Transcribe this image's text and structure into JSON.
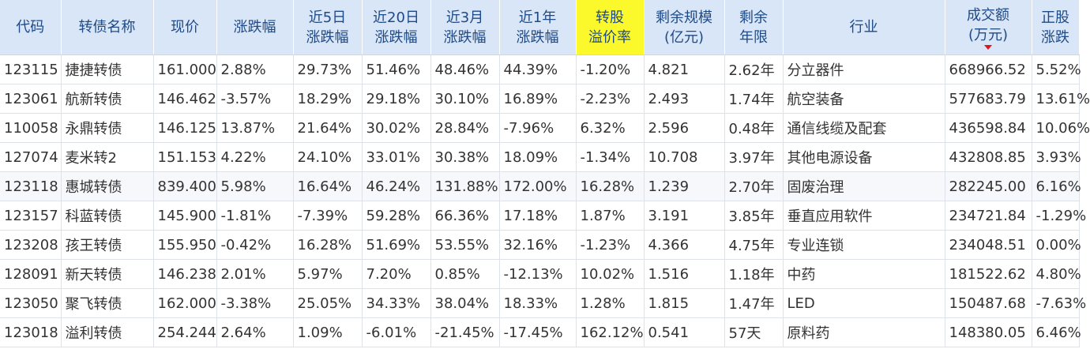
{
  "headers": [
    {
      "key": "code",
      "l1": "代码",
      "l2": ""
    },
    {
      "key": "name",
      "l1": "转债名称",
      "l2": ""
    },
    {
      "key": "price",
      "l1": "现价",
      "l2": ""
    },
    {
      "key": "chg",
      "l1": "涨跌幅",
      "l2": ""
    },
    {
      "key": "chg5",
      "l1": "近5日",
      "l2": "涨跌幅"
    },
    {
      "key": "chg20",
      "l1": "近20日",
      "l2": "涨跌幅"
    },
    {
      "key": "chg3m",
      "l1": "近3月",
      "l2": "涨跌幅"
    },
    {
      "key": "chg1y",
      "l1": "近1年",
      "l2": "涨跌幅"
    },
    {
      "key": "premium",
      "l1": "转股",
      "l2": "溢价率"
    },
    {
      "key": "scale",
      "l1": "剩余规模",
      "l2": "(亿元)"
    },
    {
      "key": "years",
      "l1": "剩余",
      "l2": "年限"
    },
    {
      "key": "industry",
      "l1": "行业",
      "l2": ""
    },
    {
      "key": "amount",
      "l1": "成交额",
      "l2": "(万元)"
    },
    {
      "key": "stockchg",
      "l1": "正股",
      "l2": "涨跌"
    }
  ],
  "sort": {
    "column": "amount",
    "direction": "desc",
    "arrow_color": "#e4141a"
  },
  "highlight_header": "premium",
  "colors": {
    "up": "#e4141a",
    "down": "#169a2d",
    "code": "#1f57a6",
    "header_bg": "#d8e6f8",
    "highlight": "#fbf82c"
  },
  "rows": [
    {
      "code": "123115",
      "name": "捷捷转债",
      "name_color": "flat",
      "price": "161.000",
      "chg": "2.88%",
      "chg5": "29.73%",
      "chg20": "51.46%",
      "chg3m": "48.46%",
      "chg1y": "44.39%",
      "premium": "-1.20%",
      "scale": "4.821",
      "years": "2.62年",
      "industry": "分立器件",
      "amount": "668966.52",
      "stockchg": "5.52%"
    },
    {
      "code": "123061",
      "name": "航新转债",
      "name_color": "up",
      "price": "146.462",
      "chg": "-3.57%",
      "chg5": "18.29%",
      "chg20": "29.18%",
      "chg3m": "30.10%",
      "chg1y": "16.89%",
      "premium": "-2.23%",
      "scale": "2.493",
      "years": "1.74年",
      "industry": "航空装备",
      "amount": "577683.79",
      "stockchg": "13.61%"
    },
    {
      "code": "110058",
      "name": "永鼎转债",
      "name_color": "flat",
      "price": "146.125",
      "chg": "13.87%",
      "chg5": "21.64%",
      "chg20": "30.02%",
      "chg3m": "28.84%",
      "chg1y": "-7.96%",
      "premium": "6.32%",
      "scale": "2.596",
      "years": "0.48年",
      "industry": "通信线缆及配套",
      "amount": "436598.84",
      "stockchg": "10.06%"
    },
    {
      "code": "127074",
      "name": "麦米转2",
      "name_color": "flat",
      "price": "151.153",
      "chg": "4.22%",
      "chg5": "24.10%",
      "chg20": "33.01%",
      "chg3m": "30.38%",
      "chg1y": "18.09%",
      "premium": "-1.34%",
      "scale": "10.708",
      "years": "3.97年",
      "industry": "其他电源设备",
      "amount": "432808.85",
      "stockchg": "3.93%"
    },
    {
      "code": "123118",
      "name": "惠城转债",
      "name_color": "flat",
      "price": "839.400",
      "chg": "5.98%",
      "chg5": "16.64%",
      "chg20": "46.24%",
      "chg3m": "131.88%",
      "chg1y": "172.00%",
      "premium": "16.28%",
      "scale": "1.239",
      "years": "2.70年",
      "industry": "固废治理",
      "amount": "282245.00",
      "stockchg": "6.16%"
    },
    {
      "code": "123157",
      "name": "科蓝转债",
      "name_color": "flat",
      "price": "145.900",
      "chg": "-1.81%",
      "chg5": "-7.39%",
      "chg20": "59.28%",
      "chg3m": "66.36%",
      "chg1y": "17.18%",
      "premium": "1.87%",
      "scale": "3.191",
      "years": "3.85年",
      "industry": "垂直应用软件",
      "amount": "234721.84",
      "stockchg": "-1.29%"
    },
    {
      "code": "123208",
      "name": "孩王转债",
      "name_color": "flat",
      "price": "155.950",
      "chg": "-0.42%",
      "chg5": "16.28%",
      "chg20": "51.69%",
      "chg3m": "53.55%",
      "chg1y": "32.16%",
      "premium": "-1.23%",
      "scale": "4.366",
      "years": "4.75年",
      "industry": "专业连锁",
      "amount": "234048.51",
      "stockchg": "0.00%"
    },
    {
      "code": "128091",
      "name": "新天转债",
      "name_color": "up",
      "price": "146.238",
      "chg": "2.01%",
      "chg5": "5.97%",
      "chg20": "7.20%",
      "chg3m": "0.85%",
      "chg1y": "-12.13%",
      "premium": "10.02%",
      "scale": "1.516",
      "years": "1.18年",
      "industry": "中药",
      "amount": "181522.62",
      "stockchg": "4.80%"
    },
    {
      "code": "123050",
      "name": "聚飞转债",
      "name_color": "flat",
      "price": "162.000",
      "chg": "-3.38%",
      "chg5": "25.05%",
      "chg20": "34.33%",
      "chg3m": "38.04%",
      "chg1y": "18.33%",
      "premium": "1.28%",
      "scale": "1.815",
      "years": "1.47年",
      "industry": "LED",
      "amount": "150487.68",
      "stockchg": "-7.63%"
    },
    {
      "code": "123018",
      "name": "溢利转债",
      "name_color": "flat",
      "price": "254.244",
      "chg": "2.64%",
      "chg5": "1.09%",
      "chg20": "-6.01%",
      "chg3m": "-21.45%",
      "chg1y": "-17.45%",
      "premium": "162.12%",
      "scale": "0.541",
      "years": "57天",
      "industry": "原料药",
      "amount": "148380.05",
      "stockchg": "6.46%"
    }
  ]
}
